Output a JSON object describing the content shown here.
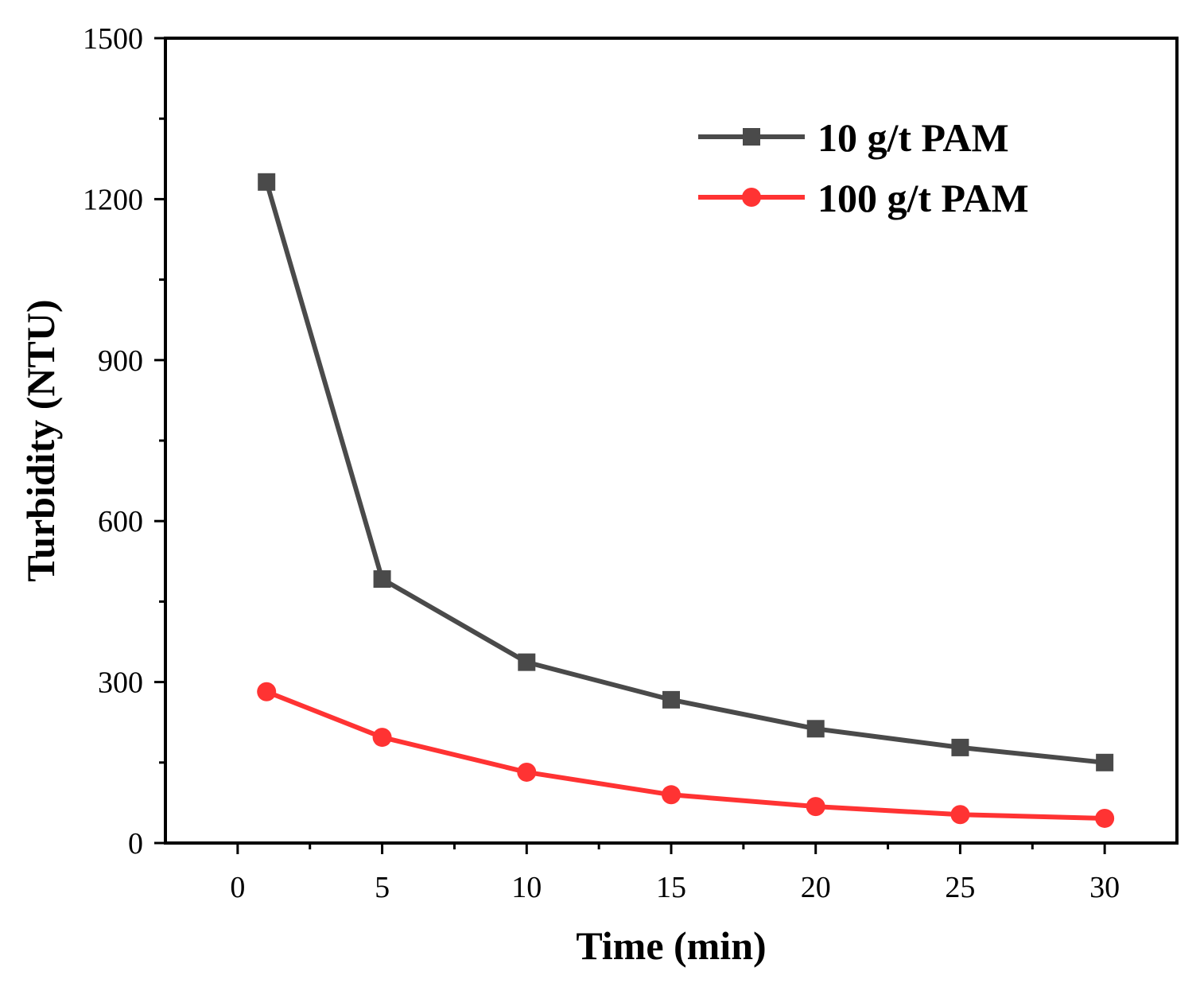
{
  "chart_data": {
    "type": "line",
    "xlabel": "Time (min)",
    "ylabel": "Turbidity (NTU)",
    "xlim": [
      -2.5,
      32.5
    ],
    "ylim": [
      0,
      1500
    ],
    "x_ticks": [
      0,
      5,
      10,
      15,
      20,
      25,
      30
    ],
    "x_tick_labels": [
      "0",
      "5",
      "10",
      "15",
      "20",
      "25",
      "30"
    ],
    "y_ticks": [
      0,
      300,
      600,
      900,
      1200,
      1500
    ],
    "y_tick_labels": [
      "0",
      "300",
      "600",
      "900",
      "1200",
      "1500"
    ],
    "grid": false,
    "legend_position": "top-right",
    "x": [
      1,
      5,
      10,
      15,
      20,
      25,
      30
    ],
    "series": [
      {
        "name": "10 g/t PAM",
        "marker": "square",
        "color": "#4a4a4a",
        "values": [
          1232,
          492,
          337,
          267,
          213,
          178,
          150
        ]
      },
      {
        "name": "100 g/t PAM",
        "marker": "circle",
        "color": "#ff3333",
        "values": [
          282,
          197,
          132,
          90,
          68,
          53,
          46
        ]
      }
    ]
  }
}
